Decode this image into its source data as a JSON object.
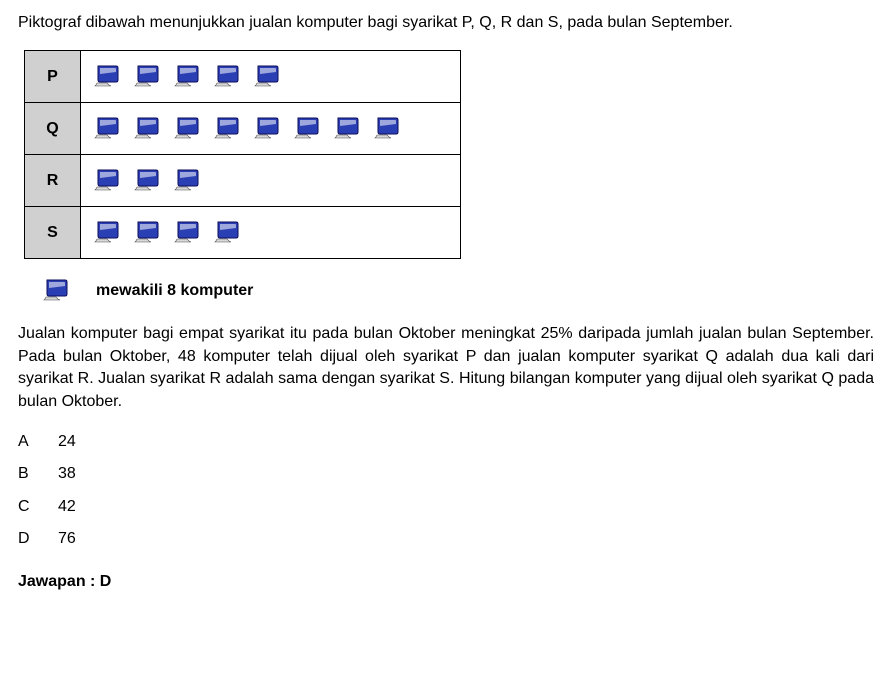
{
  "icon": {
    "monitor_body_fill": "#2b3fb4",
    "monitor_body_stroke": "#0e0e5a",
    "monitor_highlight": "#ffffff",
    "monitor_base_fill": "#d8d8d8",
    "monitor_base_stroke": "#505050"
  },
  "intro": "Piktograf dibawah menunjukkan jualan komputer bagi syarikat P, Q, R dan S, pada bulan September.",
  "pictograph": {
    "rows": [
      {
        "label": "P",
        "count": 5
      },
      {
        "label": "Q",
        "count": 8
      },
      {
        "label": "R",
        "count": 3
      },
      {
        "label": "S",
        "count": 4
      }
    ]
  },
  "legend": "mewakili 8 komputer",
  "body": "Jualan komputer bagi empat syarikat itu pada bulan Oktober meningkat 25% daripada jumlah jualan bulan September. Pada bulan Oktober, 48 komputer telah dijual oleh syarikat P dan jualan komputer syarikat Q adalah dua kali dari syarikat R. Jualan syarikat R adalah sama dengan syarikat S. Hitung bilangan komputer yang dijual oleh syarikat Q pada bulan Oktober.",
  "options": [
    {
      "letter": "A",
      "value": "24"
    },
    {
      "letter": "B",
      "value": "38"
    },
    {
      "letter": "C",
      "value": "42"
    },
    {
      "letter": "D",
      "value": "76"
    }
  ],
  "answer": "Jawapan : D"
}
